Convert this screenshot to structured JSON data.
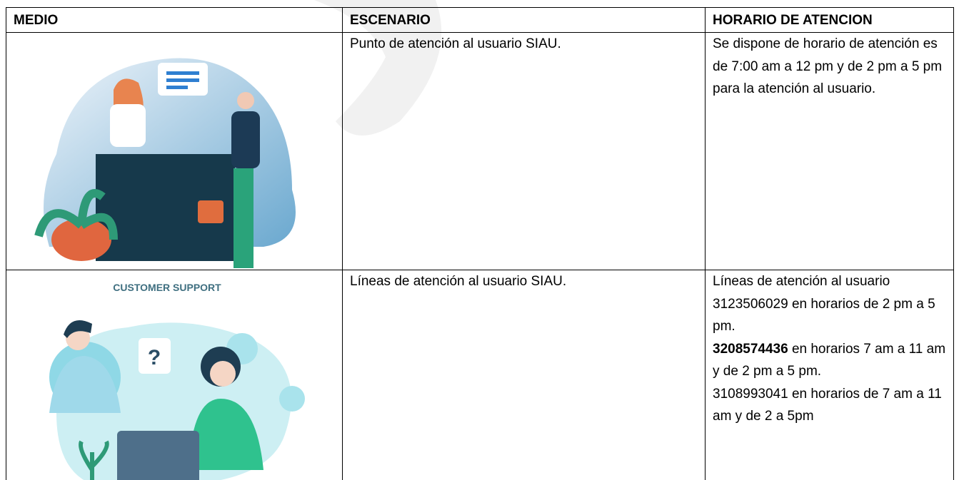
{
  "table": {
    "header": [
      "MEDIO",
      "ESCENARIO",
      "HORARIO DE ATENCION"
    ],
    "rows": [
      {
        "escenario": "Punto de atención al usuario SIAU.",
        "horario": "Se dispone de horario de atención es de 7:00 am a 12 pm y de 2 pm a 5 pm para la atención al usuario."
      },
      {
        "image_caption": "CUSTOMER SUPPORT",
        "escenario": "Líneas de atención al usuario SIAU.",
        "horario": {
          "intro": "Líneas de atención al usuario",
          "lines": [
            {
              "phone": "3123506029",
              "text": "en horarios de 2 pm a 5 pm."
            },
            {
              "phone": "3208574436",
              "text": "en horarios 7 am a 11 am y de 2 pm a 5 pm."
            },
            {
              "phone": "3108993041",
              "text": "en horarios de 7 am a 11 am y de 2 a 5pm"
            }
          ]
        }
      }
    ]
  }
}
